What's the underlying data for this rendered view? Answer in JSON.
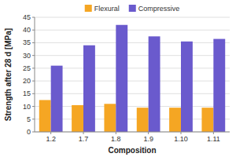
{
  "chart_data": {
    "type": "bar",
    "xlabel": "Composition",
    "ylabel": "Strength after 28 d [MPa]",
    "categories": [
      "1.2",
      "1.7",
      "1.8",
      "1.9",
      "1.10",
      "1.11"
    ],
    "series": [
      {
        "name": "Flexural",
        "color": "#F5A623",
        "values": [
          12.5,
          10.5,
          11.0,
          9.5,
          9.5,
          9.5
        ]
      },
      {
        "name": "Compressive",
        "color": "#6A5ACD",
        "values": [
          26.0,
          34.0,
          42.0,
          37.5,
          35.5,
          36.5
        ]
      }
    ],
    "ylim": [
      0,
      45
    ],
    "yticks": [
      0,
      5,
      10,
      15,
      20,
      25,
      30,
      35,
      40,
      45
    ],
    "grid": true,
    "legend": "top"
  }
}
